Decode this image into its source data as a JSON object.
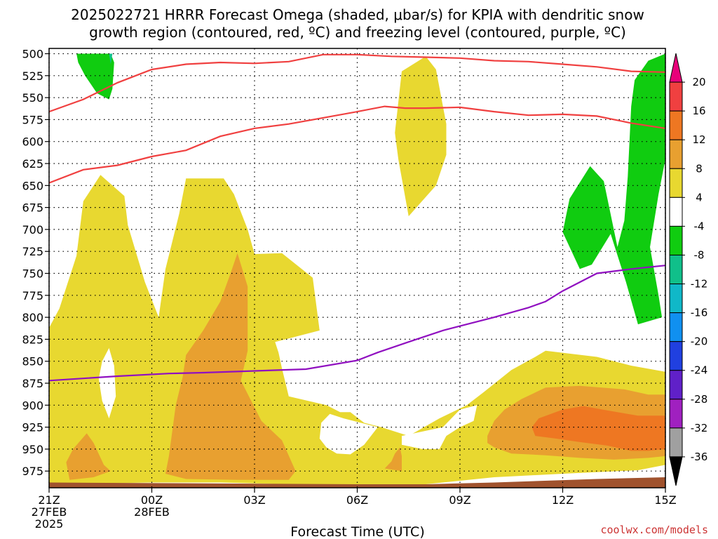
{
  "chart_data": {
    "type": "area",
    "title_line1": "2025022721 HRRR Forecast Omega (shaded, μbar/s) for KPIA with dendritic snow",
    "title_line2": "growth region (contoured, red, ºC) and freezing level (contoured, purple, ºC)",
    "xlabel": "Forecast Time (UTC)",
    "credit": "coolwx.com/models",
    "x_ticks": [
      {
        "hour": 0,
        "lines": [
          "21Z",
          "27FEB",
          "2025"
        ]
      },
      {
        "hour": 3,
        "lines": [
          "00Z",
          "28FEB"
        ]
      },
      {
        "hour": 6,
        "lines": [
          "03Z"
        ]
      },
      {
        "hour": 9,
        "lines": [
          "06Z"
        ]
      },
      {
        "hour": 12,
        "lines": [
          "09Z"
        ]
      },
      {
        "hour": 15,
        "lines": [
          "12Z"
        ]
      },
      {
        "hour": 18,
        "lines": [
          "15Z"
        ]
      }
    ],
    "xlim": [
      0,
      18
    ],
    "y_levels": [
      500,
      525,
      550,
      575,
      600,
      625,
      650,
      675,
      700,
      725,
      750,
      775,
      800,
      825,
      850,
      875,
      900,
      925,
      950,
      975
    ],
    "grid": true,
    "colorbar": {
      "labels": [
        "20",
        "16",
        "12",
        "8",
        "4",
        "-4",
        "-8",
        "-12",
        "-16",
        "-20",
        "-24",
        "-28",
        "-32",
        "-36"
      ],
      "colors": [
        "#e8007a",
        "#f04040",
        "#ee7722",
        "#e8a030",
        "#e8d830",
        "#ffffff",
        "#10cc10",
        "#10c08a",
        "#10b8c8",
        "#1090f0",
        "#2040e0",
        "#6020c8",
        "#a020c0",
        "#a0a0a0",
        "#000000"
      ]
    },
    "omega_regions": [
      {
        "level": "-8",
        "color": "#10cc10",
        "points": [
          [
            0.8,
            500
          ],
          [
            1.8,
            500
          ],
          [
            1.9,
            510
          ],
          [
            1.85,
            540
          ],
          [
            1.75,
            552
          ],
          [
            1.4,
            545
          ],
          [
            1.05,
            525
          ],
          [
            0.85,
            510
          ]
        ]
      },
      {
        "level": "-12",
        "color": "#10c08a",
        "points": [
          [
            1.75,
            500
          ],
          [
            1.85,
            500
          ],
          [
            1.8,
            512
          ]
        ]
      },
      {
        "level": "-8",
        "color": "#10cc10",
        "points": [
          [
            17.5,
            508
          ],
          [
            18.0,
            500
          ],
          [
            18.0,
            620
          ],
          [
            17.8,
            660
          ],
          [
            17.55,
            720
          ],
          [
            17.8,
            775
          ],
          [
            17.9,
            800
          ],
          [
            17.2,
            808
          ],
          [
            16.85,
            760
          ],
          [
            16.4,
            705
          ],
          [
            15.85,
            740
          ],
          [
            15.5,
            745
          ],
          [
            15.0,
            703
          ],
          [
            15.2,
            665
          ],
          [
            15.8,
            628
          ],
          [
            16.2,
            645
          ],
          [
            16.6,
            720
          ],
          [
            16.8,
            690
          ],
          [
            16.9,
            640
          ],
          [
            17.0,
            560
          ],
          [
            17.1,
            530
          ]
        ]
      },
      {
        "level": "4",
        "color": "#e8d830",
        "points": [
          [
            10.3,
            520
          ],
          [
            11.0,
            503
          ],
          [
            11.3,
            518
          ],
          [
            11.6,
            580
          ],
          [
            11.6,
            615
          ],
          [
            11.3,
            650
          ],
          [
            10.5,
            685
          ],
          [
            10.2,
            620
          ],
          [
            10.1,
            590
          ]
        ]
      },
      {
        "level": "4",
        "color": "#e8d830",
        "points": [
          [
            0,
            812
          ],
          [
            0.3,
            790
          ],
          [
            0.8,
            730
          ],
          [
            1.0,
            668
          ],
          [
            1.5,
            638
          ],
          [
            2.2,
            662
          ],
          [
            2.3,
            695
          ],
          [
            2.8,
            760
          ],
          [
            3.2,
            800
          ],
          [
            3.4,
            745
          ],
          [
            3.8,
            682
          ],
          [
            4.0,
            642
          ],
          [
            5.1,
            642
          ],
          [
            5.4,
            660
          ],
          [
            5.8,
            700
          ],
          [
            6.0,
            728
          ],
          [
            6.8,
            727
          ],
          [
            7.7,
            755
          ],
          [
            7.9,
            815
          ],
          [
            7.2,
            822
          ],
          [
            6.6,
            828
          ],
          [
            6.7,
            840
          ],
          [
            6.8,
            858
          ],
          [
            7.0,
            890
          ],
          [
            8.1,
            900
          ],
          [
            8.5,
            908
          ],
          [
            8.8,
            908
          ],
          [
            9.2,
            920
          ],
          [
            9.7,
            925
          ],
          [
            10.5,
            935
          ],
          [
            11.4,
            915
          ],
          [
            12.2,
            900
          ],
          [
            12.7,
            885
          ],
          [
            13.5,
            860
          ],
          [
            14.2,
            845
          ],
          [
            14.5,
            838
          ],
          [
            16.0,
            845
          ],
          [
            17.0,
            855
          ],
          [
            18.0,
            862
          ],
          [
            18.0,
            968
          ],
          [
            17.2,
            974
          ],
          [
            15.0,
            978
          ],
          [
            13.0,
            982
          ],
          [
            11.0,
            990
          ],
          [
            9.0,
            990
          ],
          [
            7.0,
            990
          ],
          [
            5.0,
            988
          ],
          [
            3.0,
            988
          ],
          [
            0,
            990
          ]
        ]
      },
      {
        "level": "0",
        "color": "#ffffff",
        "points": [
          [
            1.55,
            850
          ],
          [
            1.75,
            835
          ],
          [
            1.9,
            855
          ],
          [
            1.95,
            890
          ],
          [
            1.75,
            915
          ],
          [
            1.55,
            895
          ],
          [
            1.45,
            870
          ]
        ]
      },
      {
        "level": "0",
        "color": "#ffffff",
        "points": [
          [
            7.9,
            938
          ],
          [
            8.1,
            948
          ],
          [
            8.4,
            955
          ],
          [
            8.8,
            956
          ],
          [
            9.2,
            945
          ],
          [
            9.6,
            925
          ],
          [
            9.2,
            921
          ],
          [
            8.6,
            915
          ],
          [
            8.2,
            910
          ],
          [
            7.95,
            920
          ]
        ]
      },
      {
        "level": "0",
        "color": "#ffffff",
        "points": [
          [
            10.3,
            935
          ],
          [
            11.5,
            925
          ],
          [
            12.0,
            905
          ],
          [
            12.5,
            900
          ],
          [
            12.4,
            918
          ],
          [
            12.0,
            925
          ],
          [
            11.6,
            935
          ],
          [
            11.4,
            950
          ],
          [
            10.9,
            950
          ],
          [
            10.3,
            945
          ]
        ]
      },
      {
        "level": "8",
        "color": "#e8a030",
        "points": [
          [
            3.5,
            958
          ],
          [
            3.7,
            900
          ],
          [
            3.9,
            868
          ],
          [
            4.0,
            843
          ],
          [
            4.5,
            815
          ],
          [
            5.0,
            782
          ],
          [
            5.3,
            750
          ],
          [
            5.5,
            727
          ],
          [
            5.8,
            765
          ],
          [
            5.8,
            838
          ],
          [
            5.6,
            872
          ],
          [
            6.2,
            918
          ],
          [
            6.8,
            940
          ],
          [
            7.2,
            975
          ],
          [
            7.0,
            985
          ],
          [
            5.5,
            985
          ],
          [
            4.0,
            984
          ],
          [
            3.4,
            978
          ]
        ]
      },
      {
        "level": "8",
        "color": "#e8a030",
        "points": [
          [
            0.5,
            965
          ],
          [
            0.7,
            950
          ],
          [
            1.1,
            932
          ],
          [
            1.3,
            943
          ],
          [
            1.6,
            968
          ],
          [
            1.8,
            975
          ],
          [
            1.3,
            982
          ],
          [
            0.6,
            985
          ]
        ]
      },
      {
        "level": "8",
        "color": "#e8a030",
        "points": [
          [
            9.8,
            972
          ],
          [
            10.0,
            964
          ],
          [
            10.1,
            955
          ],
          [
            10.25,
            948
          ],
          [
            10.3,
            958
          ],
          [
            10.3,
            975
          ]
        ]
      },
      {
        "level": "8",
        "color": "#e8a030",
        "points": [
          [
            12.8,
            935
          ],
          [
            13.0,
            918
          ],
          [
            13.3,
            905
          ],
          [
            13.8,
            893
          ],
          [
            14.5,
            880
          ],
          [
            15.5,
            878
          ],
          [
            16.8,
            882
          ],
          [
            17.5,
            888
          ],
          [
            18.0,
            888
          ],
          [
            18.0,
            958
          ],
          [
            17.5,
            960
          ],
          [
            16.5,
            962
          ],
          [
            15.5,
            960
          ],
          [
            14.5,
            957
          ],
          [
            13.5,
            955
          ],
          [
            13.0,
            948
          ],
          [
            12.8,
            943
          ]
        ]
      },
      {
        "level": "12",
        "color": "#ee7722",
        "points": [
          [
            14.1,
            925
          ],
          [
            14.3,
            915
          ],
          [
            15.0,
            905
          ],
          [
            15.6,
            901
          ],
          [
            16.3,
            906
          ],
          [
            17.2,
            912
          ],
          [
            18.0,
            912
          ],
          [
            18.0,
            950
          ],
          [
            17.5,
            952
          ],
          [
            17.0,
            952
          ],
          [
            16.3,
            946
          ],
          [
            15.5,
            942
          ],
          [
            14.8,
            938
          ],
          [
            14.2,
            935
          ]
        ]
      },
      {
        "level": "ground",
        "color": "#a0522d",
        "points": [
          [
            0,
            988
          ],
          [
            9,
            990
          ],
          [
            11,
            990
          ],
          [
            13,
            988
          ],
          [
            16,
            984
          ],
          [
            18,
            982
          ],
          [
            18,
            994
          ],
          [
            0,
            994
          ]
        ]
      }
    ],
    "dgz_upper": {
      "color": "#f04040",
      "points": [
        [
          0,
          566
        ],
        [
          1.0,
          552
        ],
        [
          2.0,
          533
        ],
        [
          3.0,
          518
        ],
        [
          4.0,
          512
        ],
        [
          5.0,
          510
        ],
        [
          6.0,
          511
        ],
        [
          7.0,
          509
        ],
        [
          8.0,
          501
        ],
        [
          9.0,
          501
        ],
        [
          10.0,
          503
        ],
        [
          11.0,
          504
        ],
        [
          12.0,
          505
        ],
        [
          13.0,
          508
        ],
        [
          14.0,
          509
        ],
        [
          15.0,
          512
        ],
        [
          16.0,
          515
        ],
        [
          17.0,
          520
        ],
        [
          18.0,
          521
        ]
      ]
    },
    "dgz_lower": {
      "color": "#f04040",
      "points": [
        [
          0,
          647
        ],
        [
          1.0,
          632
        ],
        [
          2.0,
          627
        ],
        [
          3.0,
          617
        ],
        [
          4.0,
          610
        ],
        [
          5.0,
          594
        ],
        [
          6.0,
          585
        ],
        [
          7.0,
          580
        ],
        [
          8.0,
          573
        ],
        [
          9.0,
          566
        ],
        [
          9.8,
          560
        ],
        [
          10.4,
          562
        ],
        [
          11.0,
          562
        ],
        [
          12.0,
          561
        ],
        [
          13.0,
          566
        ],
        [
          14.0,
          570
        ],
        [
          15.0,
          569
        ],
        [
          16.0,
          571
        ],
        [
          17.0,
          579
        ],
        [
          18.0,
          585
        ]
      ]
    },
    "freezing_level": {
      "color": "#9010c0",
      "points": [
        [
          0,
          872
        ],
        [
          2.0,
          867
        ],
        [
          3.5,
          864
        ],
        [
          4.5,
          863
        ],
        [
          6.0,
          861
        ],
        [
          7.5,
          859
        ],
        [
          9.0,
          849
        ],
        [
          9.6,
          840
        ],
        [
          10.5,
          828
        ],
        [
          11.5,
          815
        ],
        [
          12.0,
          810
        ],
        [
          13.0,
          800
        ],
        [
          14.0,
          789
        ],
        [
          14.5,
          782
        ],
        [
          15.0,
          770
        ],
        [
          16.0,
          750
        ],
        [
          17.0,
          745
        ],
        [
          18.0,
          741
        ]
      ]
    }
  }
}
